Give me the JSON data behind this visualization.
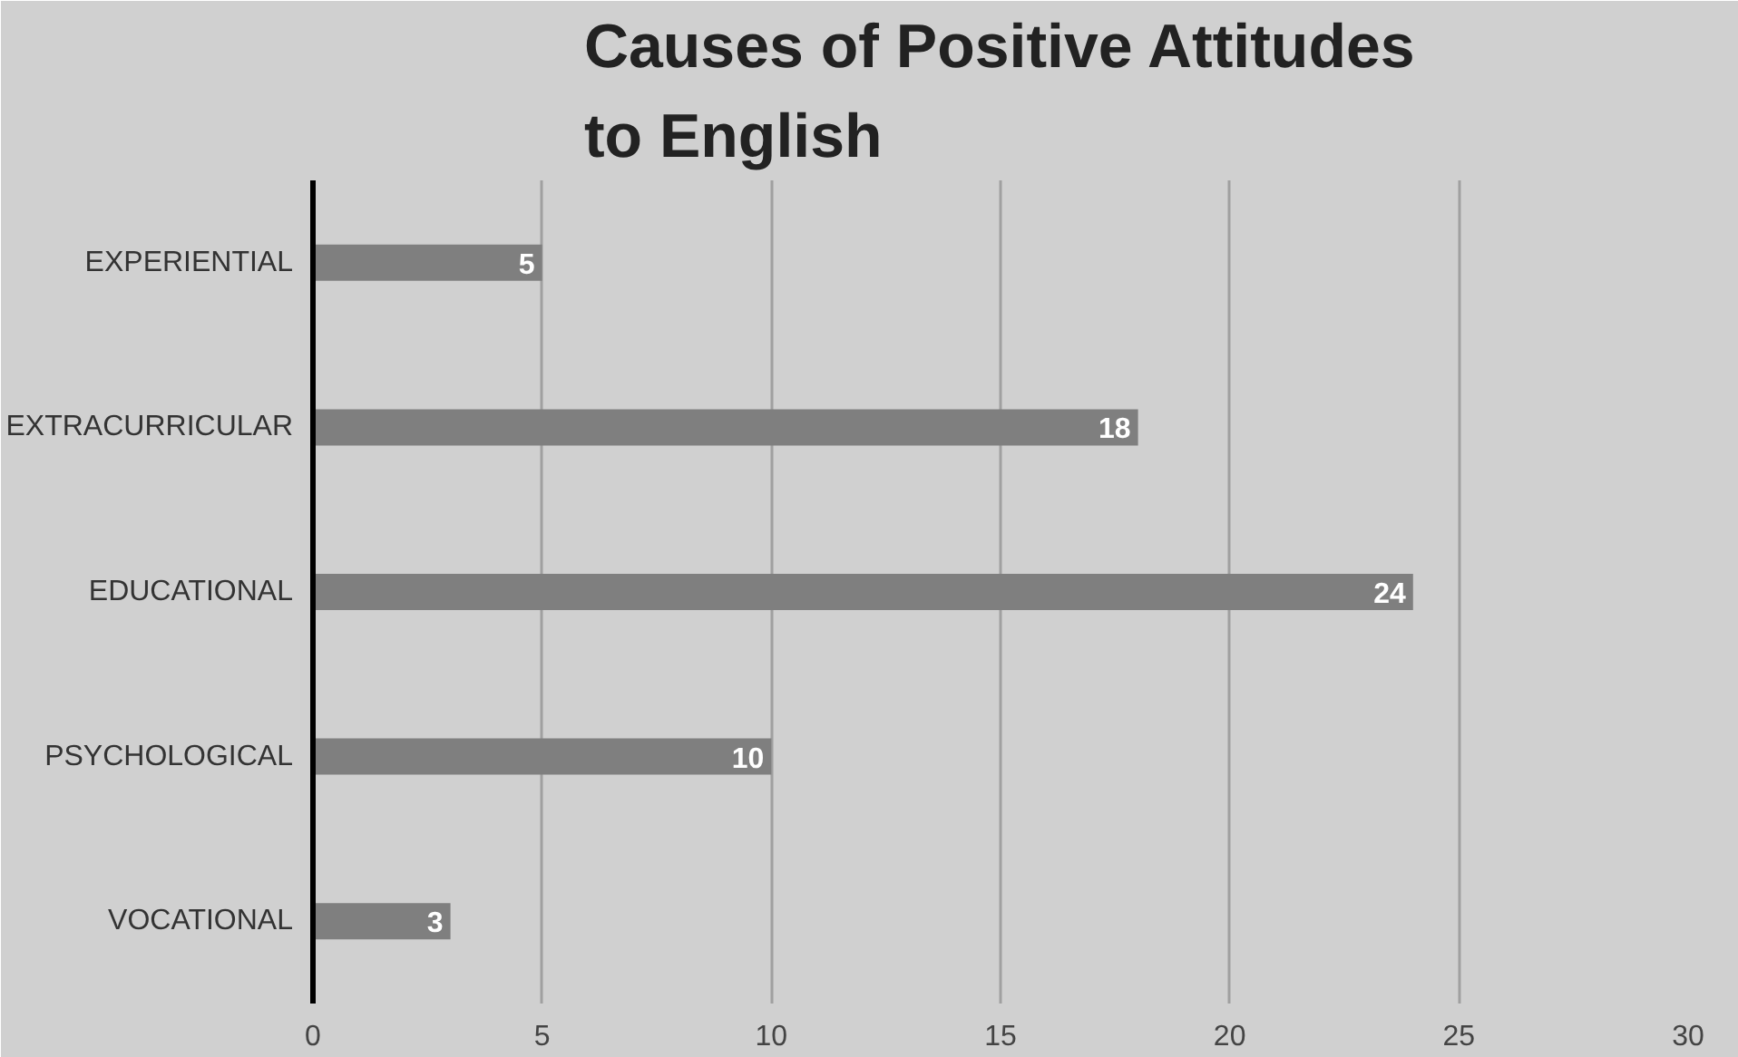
{
  "chart_data": {
    "type": "bar",
    "orientation": "horizontal",
    "title": "Causes of Positive Attitudes to English",
    "categories": [
      "EXPERIENTIAL",
      "EXTRACURRICULAR",
      "EDUCATIONAL",
      "PSYCHOLOGICAL",
      "VOCATIONAL"
    ],
    "values": [
      5,
      18,
      24,
      10,
      3
    ],
    "color": "#7f7f7f",
    "xlim": [
      0,
      30
    ],
    "xticks": [
      0,
      5,
      10,
      15,
      20,
      25,
      30
    ],
    "grid": "x",
    "data_labels": true
  }
}
